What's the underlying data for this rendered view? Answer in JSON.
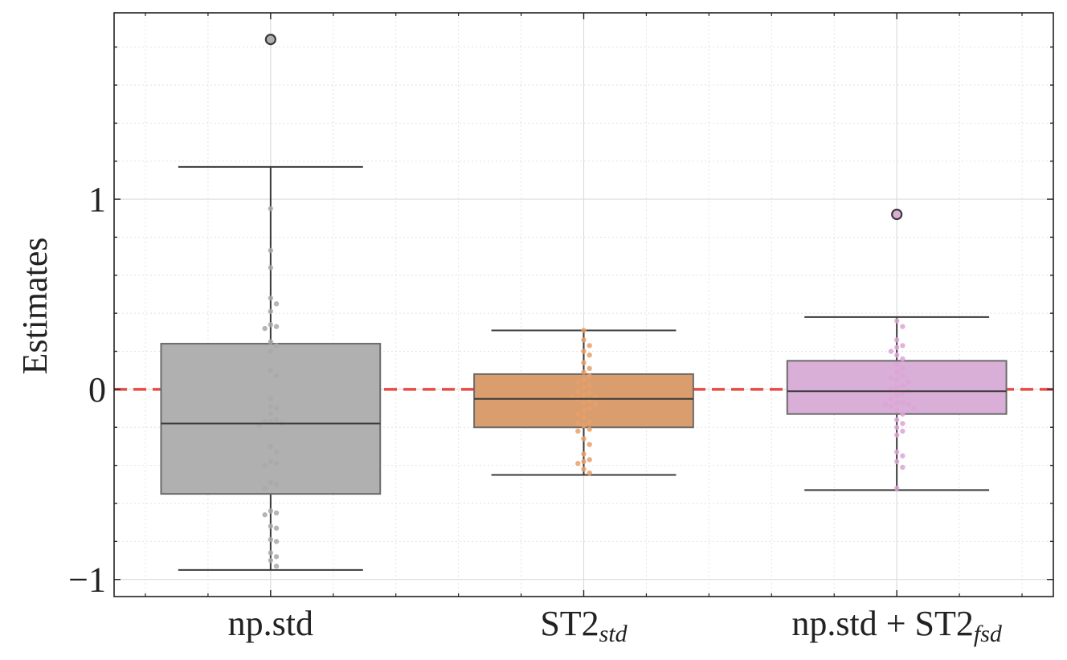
{
  "chart_data": {
    "type": "box",
    "title": "",
    "xlabel": "",
    "ylabel": "Estimates",
    "ylim": [
      -1.09,
      1.98
    ],
    "yticks": [
      -1,
      0,
      1
    ],
    "ytick_labels": [
      "−1",
      "0",
      "1"
    ],
    "grid": true,
    "reference_line": {
      "y": 0,
      "color": "#e8403a",
      "style": "dashed"
    },
    "categories": [
      {
        "main": "np.std",
        "sub": ""
      },
      {
        "main": "ST2",
        "sub": "std"
      },
      {
        "main": "np.std + ST2",
        "sub": "fsd"
      }
    ],
    "series": [
      {
        "name": "np.std",
        "color": "#b0b0b0",
        "point_color": "#a9a9a9",
        "q1": -0.55,
        "median": -0.18,
        "q3": 0.24,
        "whisker_low": -0.95,
        "whisker_high": 1.17,
        "outliers": [
          1.84
        ],
        "points": [
          0.95,
          0.73,
          0.64,
          0.48,
          0.45,
          0.41,
          0.34,
          0.33,
          0.32,
          0.25,
          0.23,
          0.2,
          0.1,
          0.07,
          -0.05,
          -0.09,
          -0.1,
          -0.13,
          -0.16,
          -0.17,
          -0.17,
          -0.18,
          -0.19,
          -0.3,
          -0.33,
          -0.38,
          -0.39,
          -0.4,
          -0.49,
          -0.5,
          -0.52,
          -0.64,
          -0.65,
          -0.66,
          -0.72,
          -0.73,
          -0.79,
          -0.8,
          -0.86,
          -0.88,
          -0.9,
          -0.93
        ]
      },
      {
        "name": "ST2_std",
        "color": "#d99d6e",
        "point_color": "#e6a06a",
        "q1": -0.2,
        "median": -0.05,
        "q3": 0.08,
        "whisker_low": -0.45,
        "whisker_high": 0.31,
        "outliers": [],
        "points": [
          0.31,
          0.26,
          0.23,
          0.2,
          0.18,
          0.14,
          0.11,
          0.09,
          0.07,
          0.05,
          0.04,
          0.02,
          0.01,
          -0.01,
          -0.02,
          -0.03,
          -0.04,
          -0.04,
          -0.05,
          -0.06,
          -0.07,
          -0.08,
          -0.1,
          -0.11,
          -0.13,
          -0.15,
          -0.17,
          -0.18,
          -0.19,
          -0.21,
          -0.22,
          -0.26,
          -0.29,
          -0.34,
          -0.37,
          -0.38,
          -0.39,
          -0.42,
          -0.44
        ]
      },
      {
        "name": "np.std + ST2_fsd",
        "color": "#d9aed7",
        "point_color": "#dca4d6",
        "q1": -0.13,
        "median": -0.01,
        "q3": 0.15,
        "whisker_low": -0.53,
        "whisker_high": 0.38,
        "outliers": [
          0.92
        ],
        "points": [
          0.36,
          0.33,
          0.26,
          0.23,
          0.22,
          0.2,
          0.18,
          0.16,
          0.13,
          0.11,
          0.09,
          0.07,
          0.06,
          0.05,
          0.04,
          0.02,
          0.01,
          0.0,
          -0.01,
          -0.02,
          -0.03,
          -0.05,
          -0.07,
          -0.07,
          -0.08,
          -0.08,
          -0.09,
          -0.1,
          -0.11,
          -0.13,
          -0.16,
          -0.18,
          -0.2,
          -0.22,
          -0.24,
          -0.33,
          -0.35,
          -0.38,
          -0.41,
          -0.52
        ]
      }
    ]
  }
}
